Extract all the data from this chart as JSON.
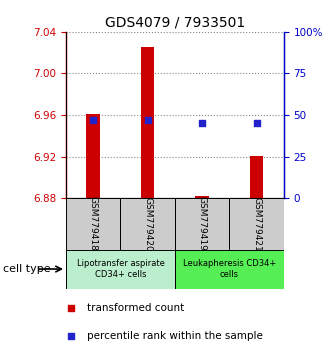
{
  "title": "GDS4079 / 7933501",
  "samples": [
    "GSM779418",
    "GSM779420",
    "GSM779419",
    "GSM779421"
  ],
  "transformed_counts": [
    6.961,
    7.025,
    6.882,
    6.921
  ],
  "percentile_ranks": [
    47,
    47,
    45,
    45
  ],
  "ylim_left": [
    6.88,
    7.04
  ],
  "yticks_left": [
    6.88,
    6.92,
    6.96,
    7.0,
    7.04
  ],
  "ylim_right": [
    0,
    100
  ],
  "yticks_right": [
    0,
    25,
    50,
    75,
    100
  ],
  "ytick_labels_right": [
    "0",
    "25",
    "50",
    "75",
    "100%"
  ],
  "bar_color": "#cc0000",
  "dot_color": "#2222cc",
  "bar_width": 0.25,
  "baseline": 6.88,
  "group1_label": "Lipotransfer aspirate\nCD34+ cells",
  "group2_label": "Leukapheresis CD34+\ncells",
  "group1_indices": [
    0,
    1
  ],
  "group2_indices": [
    2,
    3
  ],
  "group1_bg": "#bbeecc",
  "group2_bg": "#55ee55",
  "cell_type_label": "cell type",
  "legend_bar_label": "transformed count",
  "legend_dot_label": "percentile rank within the sample",
  "title_fontsize": 10,
  "tick_fontsize": 7.5,
  "left_tick_color": "#cc0000",
  "right_tick_color": "#0000cc",
  "grid_color": "#888888",
  "sample_bg_color": "#cccccc"
}
